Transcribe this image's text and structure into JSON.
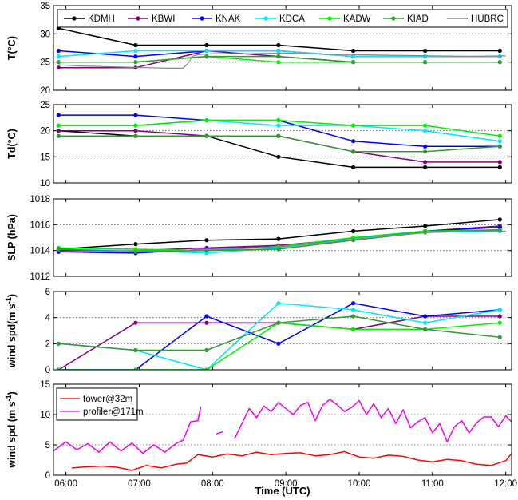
{
  "figure": {
    "xlabel": "Time (UTC)"
  },
  "chart_data": [
    {
      "type": "line",
      "ylabel": "T(°C)",
      "ylim": [
        20,
        35
      ],
      "yticks": [
        "20",
        "25",
        "30",
        "35"
      ],
      "legend_placement": "top (horizontal, inside)",
      "grid": "y dotted",
      "series": [
        {
          "name": "KDMH",
          "color": "#000000",
          "x": [
            5.9,
            6.95,
            7.92,
            8.9,
            9.92,
            10.9,
            11.92
          ],
          "values": [
            31,
            28,
            28,
            28,
            27,
            27,
            27
          ]
        },
        {
          "name": "KBWI",
          "color": "#800080",
          "x": [
            5.9,
            6.95,
            7.92,
            8.9,
            9.92,
            10.9,
            11.92
          ],
          "values": [
            24,
            24,
            27,
            26,
            25,
            25,
            25
          ]
        },
        {
          "name": "KNAK",
          "color": "#0000ff",
          "x": [
            5.9,
            6.95,
            7.92,
            8.9,
            9.92,
            10.9,
            11.92
          ],
          "values": [
            27,
            26,
            27,
            27,
            26,
            26,
            26
          ]
        },
        {
          "name": "KDCA",
          "color": "#00e5ff",
          "x": [
            5.9,
            6.95,
            7.92,
            8.9,
            9.92,
            10.9,
            11.92
          ],
          "values": [
            26,
            27,
            27,
            27,
            26,
            26,
            26
          ]
        },
        {
          "name": "KADW",
          "color": "#00ee00",
          "x": [
            5.9,
            6.95,
            7.92,
            8.9,
            9.92,
            10.9,
            11.92
          ],
          "values": [
            25,
            25,
            26,
            25,
            25,
            25,
            25
          ]
        },
        {
          "name": "KIAD",
          "color": "#339933",
          "x": [
            5.9,
            6.95,
            7.92,
            8.9,
            9.92,
            10.9,
            11.92
          ],
          "values": [
            25,
            25,
            26,
            26,
            25,
            25,
            25
          ]
        },
        {
          "name": "HUBRC",
          "color": "#888888",
          "noMarker": true,
          "x": [
            5.9,
            6.2,
            6.5,
            6.8,
            7.1,
            7.4,
            7.6,
            7.68,
            7.72,
            7.8,
            8.0,
            8.5,
            9.0,
            9.5,
            10.0,
            10.5,
            11.0,
            11.5,
            12.0
          ],
          "values": [
            24.5,
            24.3,
            24.2,
            24.1,
            24.0,
            23.9,
            23.9,
            25.0,
            26.0,
            26.3,
            26.5,
            26.5,
            26.6,
            26.4,
            26.3,
            26.2,
            26.1,
            26.0,
            26.1
          ]
        }
      ]
    },
    {
      "type": "line",
      "ylabel": "Td(°C)",
      "ylim": [
        10,
        25
      ],
      "yticks": [
        "10",
        "15",
        "20",
        "25"
      ],
      "grid": "y dotted",
      "series": [
        {
          "name": "KDMH",
          "color": "#000000",
          "x": [
            5.9,
            6.95,
            7.92,
            8.9,
            9.92,
            10.9,
            11.92
          ],
          "values": [
            20,
            19,
            19,
            15,
            13,
            13,
            13
          ]
        },
        {
          "name": "KBWI",
          "color": "#800080",
          "x": [
            5.9,
            6.95,
            7.92,
            8.9,
            9.92,
            10.9,
            11.92
          ],
          "values": [
            20,
            20,
            19,
            19,
            16,
            14,
            14
          ]
        },
        {
          "name": "KNAK",
          "color": "#0000ff",
          "x": [
            5.9,
            6.95,
            7.92,
            8.9,
            9.92,
            10.9,
            11.92
          ],
          "values": [
            23,
            23,
            22,
            22,
            18,
            17,
            17
          ]
        },
        {
          "name": "KDCA",
          "color": "#00e5ff",
          "x": [
            5.9,
            6.95,
            7.92,
            8.9,
            9.92,
            10.9,
            11.92
          ],
          "values": [
            21,
            21,
            22,
            21,
            21,
            20,
            18
          ]
        },
        {
          "name": "KADW",
          "color": "#00ee00",
          "x": [
            5.9,
            6.95,
            7.92,
            8.9,
            9.92,
            10.9,
            11.92
          ],
          "values": [
            21,
            21,
            22,
            22,
            21,
            21,
            19
          ]
        },
        {
          "name": "KIAD",
          "color": "#339933",
          "x": [
            5.9,
            6.95,
            7.92,
            8.9,
            9.92,
            10.9,
            11.92
          ],
          "values": [
            19,
            19,
            19,
            19,
            16,
            16,
            17
          ]
        }
      ]
    },
    {
      "type": "line",
      "ylabel": "SLP (hPa)",
      "ylim": [
        1012,
        1018
      ],
      "yticks": [
        "1012",
        "1014",
        "1016",
        "1018"
      ],
      "grid": "y dotted",
      "series": [
        {
          "name": "KDMH",
          "color": "#000000",
          "x": [
            5.9,
            6.95,
            7.92,
            8.9,
            9.92,
            10.9,
            11.92
          ],
          "values": [
            1014.1,
            1014.5,
            1014.8,
            1014.9,
            1015.5,
            1015.9,
            1016.4
          ]
        },
        {
          "name": "KBWI",
          "color": "#800080",
          "x": [
            5.9,
            6.95,
            7.92,
            8.9,
            9.92,
            10.9,
            11.92
          ],
          "values": [
            1014.0,
            1014.0,
            1014.2,
            1014.4,
            1014.9,
            1015.5,
            1015.9
          ]
        },
        {
          "name": "KNAK",
          "color": "#0000ff",
          "x": [
            5.9,
            6.95,
            7.92,
            8.9,
            9.92,
            10.9,
            11.92
          ],
          "values": [
            1013.9,
            1013.8,
            1014.1,
            1014.3,
            1014.9,
            1015.5,
            1015.8
          ]
        },
        {
          "name": "KDCA",
          "color": "#00e5ff",
          "x": [
            5.9,
            6.95,
            7.92,
            8.9,
            9.92,
            10.9,
            11.92
          ],
          "values": [
            1014.1,
            1014.0,
            1013.8,
            1014.2,
            1014.9,
            1015.4,
            1015.5
          ]
        },
        {
          "name": "KADW",
          "color": "#00ee00",
          "x": [
            5.9,
            6.95,
            7.92,
            8.9,
            9.92,
            10.9,
            11.92
          ],
          "values": [
            1014.2,
            1014.1,
            1014.0,
            1014.3,
            1015.0,
            1015.5,
            1015.6
          ]
        },
        {
          "name": "KIAD",
          "color": "#339933",
          "x": [
            5.9,
            6.95,
            7.92,
            8.9,
            9.92,
            10.9,
            11.92
          ],
          "values": [
            1014.1,
            1013.9,
            1014.0,
            1014.1,
            1014.8,
            1015.4,
            1015.6
          ]
        },
        {
          "name": "HUBRC",
          "color": "#888888",
          "noMarker": true,
          "x": [
            5.9,
            6.5,
            7.0,
            7.5,
            8.0,
            8.5,
            9.0,
            9.5,
            10.0,
            10.5,
            11.0,
            11.5,
            12.0
          ],
          "values": [
            1013.9,
            1013.9,
            1014.0,
            1014.0,
            1014.1,
            1014.2,
            1014.3,
            1014.6,
            1014.9,
            1015.2,
            1015.4,
            1015.5,
            1015.5
          ]
        }
      ]
    },
    {
      "type": "line",
      "ylabel": "wind spd(m s",
      "ylabel_sup": "-1",
      "ylabel_end": ")",
      "ylim": [
        0,
        6
      ],
      "yticks": [
        "0",
        "2",
        "4",
        "6"
      ],
      "grid": "y dotted",
      "series": [
        {
          "name": "KDMH",
          "color": "#000000",
          "x": [],
          "values": []
        },
        {
          "name": "KBWI",
          "color": "#800080",
          "x": [
            5.9,
            6.95,
            7.92,
            8.9,
            9.92,
            10.9,
            11.92
          ],
          "values": [
            0.0,
            3.6,
            3.6,
            3.6,
            3.1,
            4.1,
            4.1
          ]
        },
        {
          "name": "KNAK",
          "color": "#0000ff",
          "x": [
            5.9,
            6.95,
            7.92,
            8.9,
            9.92,
            10.9,
            11.92
          ],
          "values": [
            0.0,
            0.0,
            4.1,
            2.0,
            5.1,
            4.1,
            4.6
          ]
        },
        {
          "name": "KDCA",
          "color": "#00e5ff",
          "x": [
            5.9,
            6.95,
            7.92,
            8.9,
            9.92,
            10.9,
            11.92
          ],
          "values": [
            2.0,
            1.5,
            0.0,
            5.1,
            4.6,
            3.6,
            4.6
          ]
        },
        {
          "name": "KADW",
          "color": "#00ee00",
          "x": [
            5.9,
            6.95,
            7.92,
            8.9,
            9.92,
            10.9,
            11.92
          ],
          "values": [
            0.0,
            0.0,
            0.0,
            3.6,
            3.1,
            3.1,
            3.6
          ]
        },
        {
          "name": "KIAD",
          "color": "#339933",
          "x": [
            5.9,
            6.95,
            7.92,
            8.9,
            9.92,
            10.9,
            11.92
          ],
          "values": [
            2.0,
            1.5,
            1.5,
            3.6,
            4.1,
            3.1,
            2.5
          ]
        }
      ]
    },
    {
      "type": "line",
      "ylabel": "wind spd (m s",
      "ylabel_sup": "-1",
      "ylabel_end": ")",
      "ylim": [
        0,
        15
      ],
      "yticks": [
        "0",
        "5",
        "10",
        "15"
      ],
      "xticks": [
        6,
        7,
        8,
        9,
        10,
        11,
        12
      ],
      "xtick_labels": [
        "06:00",
        "07:00",
        "08:00",
        "09:00",
        "10:00",
        "11:00",
        "12:00"
      ],
      "xlim": [
        5.83,
        12.08
      ],
      "legend_placement": "top-left",
      "grid": "y dotted",
      "series": [
        {
          "name": "tower@32m",
          "color": "#ff0000",
          "x": [
            6.08,
            6.3,
            6.5,
            6.7,
            6.9,
            7.1,
            7.3,
            7.5,
            7.65,
            7.8,
            8.0,
            8.2,
            8.4,
            8.6,
            8.8,
            9.0,
            9.2,
            9.4,
            9.6,
            9.8,
            10.0,
            10.2,
            10.4,
            10.6,
            10.8,
            11.0,
            11.2,
            11.4,
            11.6,
            11.8,
            12.0,
            12.08
          ],
          "values": [
            1.2,
            1.4,
            1.5,
            1.3,
            0.8,
            1.6,
            1.2,
            1.8,
            2.0,
            3.4,
            3.0,
            3.5,
            3.2,
            3.8,
            3.4,
            3.6,
            3.7,
            3.2,
            3.4,
            3.9,
            3.0,
            2.8,
            3.3,
            3.1,
            2.5,
            2.2,
            2.6,
            2.4,
            1.8,
            1.6,
            2.4,
            3.6
          ]
        },
        {
          "name": "profiler@171m",
          "color": "#ee00ee",
          "x": [
            5.83,
            6.0,
            6.15,
            6.3,
            6.45,
            6.6,
            6.75,
            6.9,
            7.05,
            7.2,
            7.35,
            7.5,
            7.6,
            7.7,
            7.8,
            7.84,
            null,
            8.05,
            8.15,
            null,
            8.3,
            8.4,
            8.5,
            8.6,
            8.7,
            8.8,
            8.9,
            9.0,
            9.1,
            9.2,
            9.3,
            9.4,
            9.5,
            9.6,
            9.7,
            9.8,
            9.9,
            10.0,
            10.1,
            10.2,
            10.3,
            10.4,
            10.5,
            10.6,
            10.7,
            10.8,
            10.9,
            11.0,
            11.1,
            11.2,
            11.3,
            11.4,
            11.5,
            11.6,
            11.7,
            11.8,
            11.9,
            12.0,
            12.08
          ],
          "values": [
            4.0,
            5.5,
            4.2,
            5.2,
            3.8,
            5.5,
            4.0,
            5.3,
            3.6,
            5.0,
            3.8,
            5.2,
            5.8,
            8.8,
            9.0,
            11.3,
            null,
            6.8,
            7.2,
            null,
            6.0,
            8.5,
            11.0,
            9.5,
            11.4,
            10.5,
            12.0,
            11.0,
            10.0,
            11.5,
            12.0,
            9.0,
            11.5,
            12.5,
            11.6,
            10.5,
            11.2,
            12.3,
            10.0,
            11.8,
            9.5,
            11.0,
            8.5,
            10.8,
            7.8,
            8.8,
            9.5,
            7.0,
            8.5,
            5.5,
            8.0,
            9.0,
            7.0,
            8.6,
            9.6,
            9.6,
            8.0,
            9.8,
            8.8
          ]
        }
      ]
    }
  ]
}
